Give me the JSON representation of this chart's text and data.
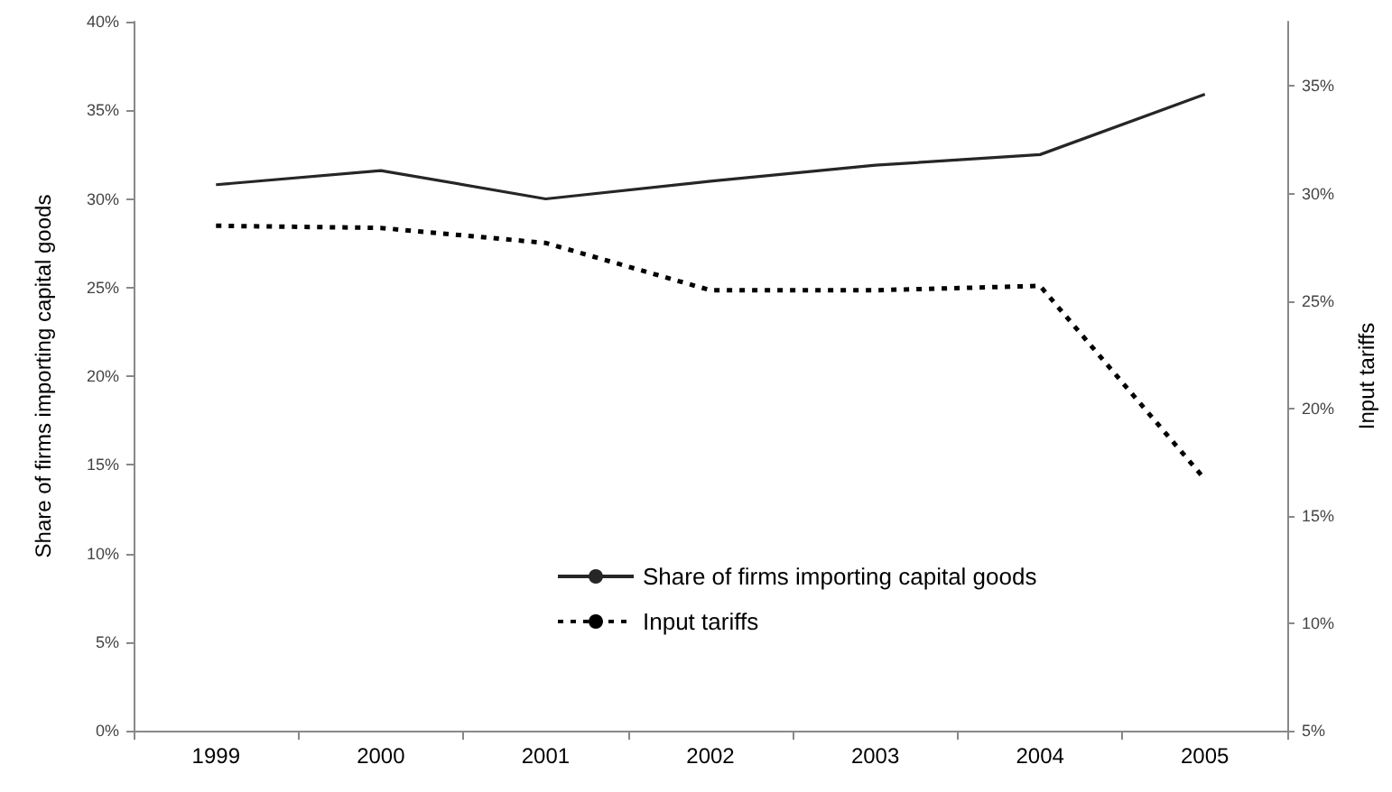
{
  "chart_data": {
    "type": "line",
    "ylabel": "Share of firms importing capital goods",
    "y2label": "Input tariffs",
    "categories": [
      "1999",
      "2000",
      "2001",
      "2002",
      "2003",
      "2004",
      "2005"
    ],
    "series": [
      {
        "name": "Share of firms importing capital goods",
        "color": "#262626",
        "line_style": "solid",
        "values": [
          30.8,
          31.6,
          30.0,
          31.0,
          31.9,
          32.5,
          35.9
        ]
      },
      {
        "name": "Input tariffs",
        "color": "#000000",
        "line_style": "dashed",
        "axis": "y2",
        "values": [
          28.5,
          28.4,
          27.7,
          25.5,
          25.5,
          25.7,
          16.7
        ]
      }
    ],
    "ylim": [
      0,
      40
    ],
    "yticks": [
      {
        "value": 0,
        "label": "0%"
      },
      {
        "value": 5,
        "label": "5%"
      },
      {
        "value": 10,
        "label": "10%"
      },
      {
        "value": 15,
        "label": "15%"
      },
      {
        "value": 20,
        "label": "20%"
      },
      {
        "value": 25,
        "label": "25%"
      },
      {
        "value": 30,
        "label": "30%"
      },
      {
        "value": 35,
        "label": "35%"
      },
      {
        "value": 40,
        "label": "40%"
      }
    ],
    "y2lim": [
      5,
      38
    ],
    "y2ticks": [
      {
        "value": 5,
        "label": "5%"
      },
      {
        "value": 10,
        "label": "10%"
      },
      {
        "value": 15,
        "label": "15%"
      },
      {
        "value": 20,
        "label": "20%"
      },
      {
        "value": 25,
        "label": "25%"
      },
      {
        "value": 30,
        "label": "30%"
      },
      {
        "value": 35,
        "label": "35%"
      }
    ],
    "grid": false,
    "legend": "bottom",
    "marker": "none"
  }
}
